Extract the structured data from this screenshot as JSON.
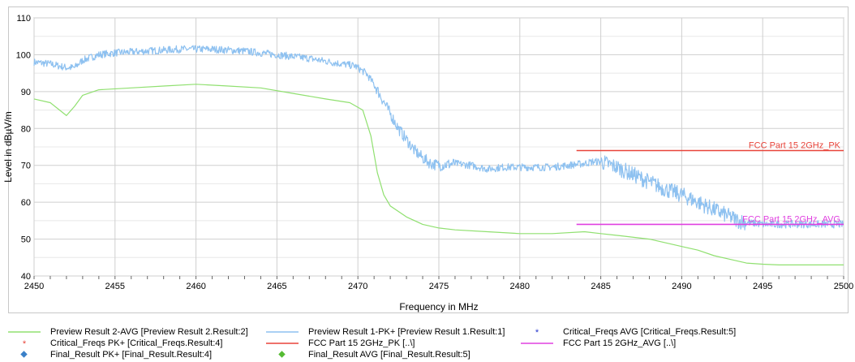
{
  "chart_data": {
    "type": "line",
    "xlabel": "Frequency in MHz",
    "ylabel": "Level in dBµV/m",
    "xlim": [
      2450,
      2500
    ],
    "ylim": [
      40,
      110
    ],
    "x_ticks": [
      "2450",
      "2455",
      "2460",
      "2465",
      "2470",
      "2475",
      "2480",
      "2485",
      "2490",
      "2495",
      "2500"
    ],
    "y_ticks": [
      "40",
      "50",
      "60",
      "70",
      "80",
      "90",
      "100",
      "110"
    ],
    "grid": true,
    "series": [
      {
        "name": "Preview Result 1-PK+",
        "color": "#8ec1f0",
        "x": [
          2450,
          2451,
          2452,
          2452.5,
          2453,
          2454,
          2455,
          2457,
          2459,
          2461,
          2463,
          2465,
          2467,
          2469,
          2469.8,
          2470.5,
          2471,
          2471.5,
          2472,
          2472.5,
          2473,
          2473.5,
          2474,
          2474.5,
          2475,
          2476,
          2477,
          2478,
          2479,
          2480,
          2481,
          2482,
          2483,
          2484,
          2484.5,
          2485,
          2486,
          2487,
          2488,
          2489,
          2490,
          2491,
          2492,
          2493,
          2493.5,
          2494,
          2495,
          2496,
          2497,
          2498,
          2499,
          2500
        ],
        "y": [
          98,
          97.5,
          96.5,
          96.5,
          98.5,
          100,
          100.5,
          101,
          101.5,
          101.5,
          101,
          100,
          99,
          97.5,
          97,
          95,
          92,
          88,
          84,
          80,
          77,
          74,
          72,
          70.5,
          70,
          70.5,
          70,
          69,
          69.5,
          69.5,
          69.5,
          69.5,
          70,
          70.5,
          71,
          71,
          69.5,
          67.5,
          65.5,
          63.5,
          62,
          60,
          58,
          56,
          55,
          54.5,
          54,
          54,
          54,
          54,
          54,
          54
        ],
        "noise": 1.0
      },
      {
        "name": "Preview Result 2-AVG",
        "color": "#90e070",
        "x": [
          2450,
          2451,
          2452,
          2452.5,
          2453,
          2454,
          2456,
          2458,
          2460,
          2462,
          2464,
          2466,
          2468,
          2469.5,
          2470.3,
          2470.8,
          2471.2,
          2471.6,
          2472,
          2473,
          2474,
          2475,
          2476,
          2478,
          2480,
          2482,
          2484,
          2485,
          2486,
          2488,
          2490,
          2491,
          2492,
          2493,
          2494,
          2495,
          2496,
          2498,
          2500
        ],
        "y": [
          88,
          87,
          83.5,
          86,
          89,
          90.5,
          91,
          91.5,
          92,
          91.5,
          91,
          89.5,
          88,
          87,
          85,
          78,
          68,
          62,
          59,
          56,
          54,
          53,
          52.5,
          52,
          51.5,
          51.5,
          52,
          51.5,
          51,
          50,
          48,
          47,
          45.5,
          44.5,
          43.5,
          43.2,
          43,
          43,
          43
        ]
      },
      {
        "name": "FCC Part 15 2GHz_PK",
        "color": "#e8443a",
        "x": [
          2483.5,
          2500
        ],
        "y": [
          74,
          74
        ]
      },
      {
        "name": "FCC Part 15 2GHz_AVG",
        "color": "#e040e0",
        "x": [
          2483.5,
          2500
        ],
        "y": [
          54,
          54
        ]
      }
    ],
    "limit_labels": [
      {
        "text": "FCC Part 15 2GHz_PK",
        "y": 74,
        "color": "#e8443a"
      },
      {
        "text": "FCC Part 15 2GHz_AVG",
        "y": 54,
        "color": "#e040e0"
      }
    ],
    "legend": [
      {
        "text": "Preview Result 2-AVG   [Preview Result 2.Result:2]",
        "symbol": "line",
        "color": "#90e070"
      },
      {
        "text": "Preview Result 1-PK+   [Preview Result 1.Result:1]",
        "symbol": "line",
        "color": "#8ec1f0"
      },
      {
        "text": "Critical_Freqs AVG   [Critical_Freqs.Result:5]",
        "symbol": "star",
        "color": "#2233cc"
      },
      {
        "text": "Critical_Freqs PK+   [Critical_Freqs.Result:4]",
        "symbol": "star",
        "color": "#e8443a"
      },
      {
        "text": "FCC Part 15 2GHz_PK   [..\\]",
        "symbol": "line",
        "color": "#e8443a"
      },
      {
        "text": "FCC Part 15 2GHz_AVG   [..\\]",
        "symbol": "line",
        "color": "#e040e0"
      },
      {
        "text": "Final_Result PK+   [Final_Result.Result:4]",
        "symbol": "diamond",
        "color": "#3a80c8"
      },
      {
        "text": "Final_Result AVG   [Final_Result.Result:5]",
        "symbol": "diamond",
        "color": "#55bb33"
      }
    ]
  }
}
